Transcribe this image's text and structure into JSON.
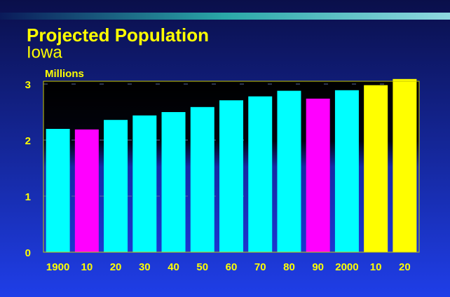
{
  "chart_data": {
    "type": "bar",
    "title": "Projected Population",
    "subtitle": "Iowa",
    "y_label": "Millions",
    "categories": [
      "1900",
      "10",
      "20",
      "30",
      "40",
      "50",
      "60",
      "70",
      "80",
      "90",
      "2000",
      "10",
      "20"
    ],
    "values": [
      2.2,
      2.19,
      2.36,
      2.44,
      2.5,
      2.59,
      2.71,
      2.78,
      2.88,
      2.74,
      2.89,
      2.98,
      3.09
    ],
    "colors": [
      "#00ffff",
      "#ff00ff",
      "#00ffff",
      "#00ffff",
      "#00ffff",
      "#00ffff",
      "#00ffff",
      "#00ffff",
      "#00ffff",
      "#ff00ff",
      "#00ffff",
      "#ffff00",
      "#ffff00"
    ],
    "ylim": [
      0,
      3.05
    ],
    "yticks": [
      0,
      1,
      2,
      3
    ],
    "grid": true
  }
}
